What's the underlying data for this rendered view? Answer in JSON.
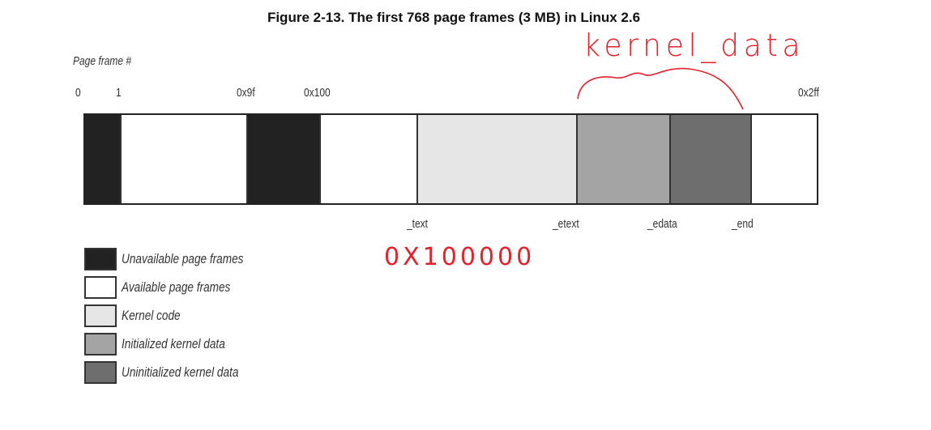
{
  "title": "Figure 2-13. The first 768 page frames (3 MB) in Linux 2.6",
  "axis_label": "Page frame #",
  "top_ticks": [
    "0",
    "1",
    "0x9f",
    "0x100",
    "0x2ff"
  ],
  "bottom_markers": [
    "_text",
    "_etext",
    "_edata",
    "_end"
  ],
  "segments": [
    {
      "type": "Unavailable page frames",
      "color": "#222222"
    },
    {
      "type": "Available page frames",
      "color": "#ffffff"
    },
    {
      "type": "Unavailable page frames",
      "color": "#222222"
    },
    {
      "type": "Available page frames",
      "color": "#ffffff"
    },
    {
      "type": "Kernel code",
      "color": "#e6e6e6"
    },
    {
      "type": "Initialized kernel data",
      "color": "#a4a4a4"
    },
    {
      "type": "Uninitialized kernel data",
      "color": "#6e6e6e"
    },
    {
      "type": "Available page frames",
      "color": "#ffffff"
    }
  ],
  "legend": [
    {
      "label": "Unavailable page frames",
      "color": "#222222"
    },
    {
      "label": "Available page frames",
      "color": "#ffffff"
    },
    {
      "label": "Kernel code",
      "color": "#e6e6e6"
    },
    {
      "label": "Initialized kernel data",
      "color": "#a4a4a4"
    },
    {
      "label": "Uninitialized kernel data",
      "color": "#6e6e6e"
    }
  ],
  "annotations": {
    "color": "#e8202a",
    "kernel_data_note": "kernel_data",
    "text_address_note": "0X100000"
  }
}
